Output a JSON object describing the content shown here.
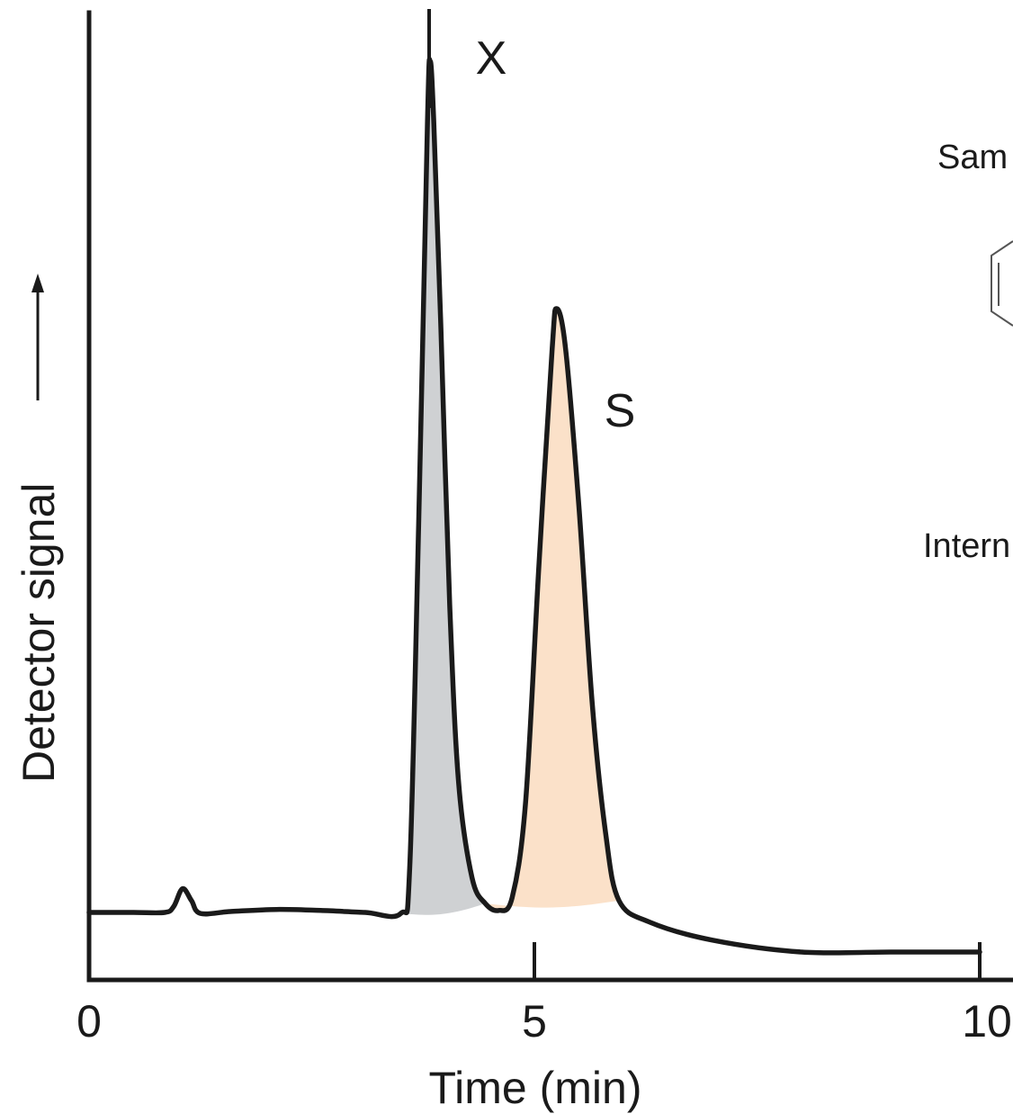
{
  "chart_data": {
    "type": "line",
    "xlabel": "Time (min)",
    "ylabel": "Detector signal",
    "xlim": [
      0,
      10
    ],
    "x_ticks": [
      "0",
      "5",
      "10"
    ],
    "y_unit": "relative",
    "series": [
      {
        "x": [
          0.0,
          0.5,
          0.85,
          0.95,
          1.05,
          1.15,
          1.25,
          1.6,
          2.1,
          2.6,
          3.1,
          3.5,
          3.6,
          3.7,
          3.8,
          3.83,
          3.87,
          3.95,
          4.05,
          4.15,
          4.3,
          4.45,
          4.6,
          4.75,
          4.9,
          5.05,
          5.2,
          5.25,
          5.35,
          5.5,
          5.65,
          5.8,
          5.95,
          6.3,
          7.0,
          8.0,
          9.0,
          10.0
        ],
        "y": [
          1.0,
          1.0,
          1.0,
          1.6,
          3.4,
          2.2,
          0.9,
          1.1,
          1.3,
          1.2,
          1.0,
          0.9,
          5.5,
          40.0,
          81.0,
          87.0,
          81.0,
          60.0,
          32.0,
          14.0,
          4.5,
          1.9,
          1.2,
          2.5,
          12.0,
          36.0,
          58.0,
          62.0,
          58.0,
          42.0,
          22.0,
          9.0,
          2.2,
          0.0,
          -1.8,
          -3.0,
          -3.0,
          -3.0
        ]
      }
    ],
    "peaks": [
      {
        "label": "X",
        "x_from": 3.5,
        "x_to": 4.45,
        "color": "#cfd1d3"
      },
      {
        "label": "S",
        "x_from": 4.45,
        "x_to": 5.95,
        "color": "#fbe1c9"
      }
    ]
  },
  "annotations": {
    "cut_top": "Sam",
    "cut_bottom": "Intern"
  }
}
